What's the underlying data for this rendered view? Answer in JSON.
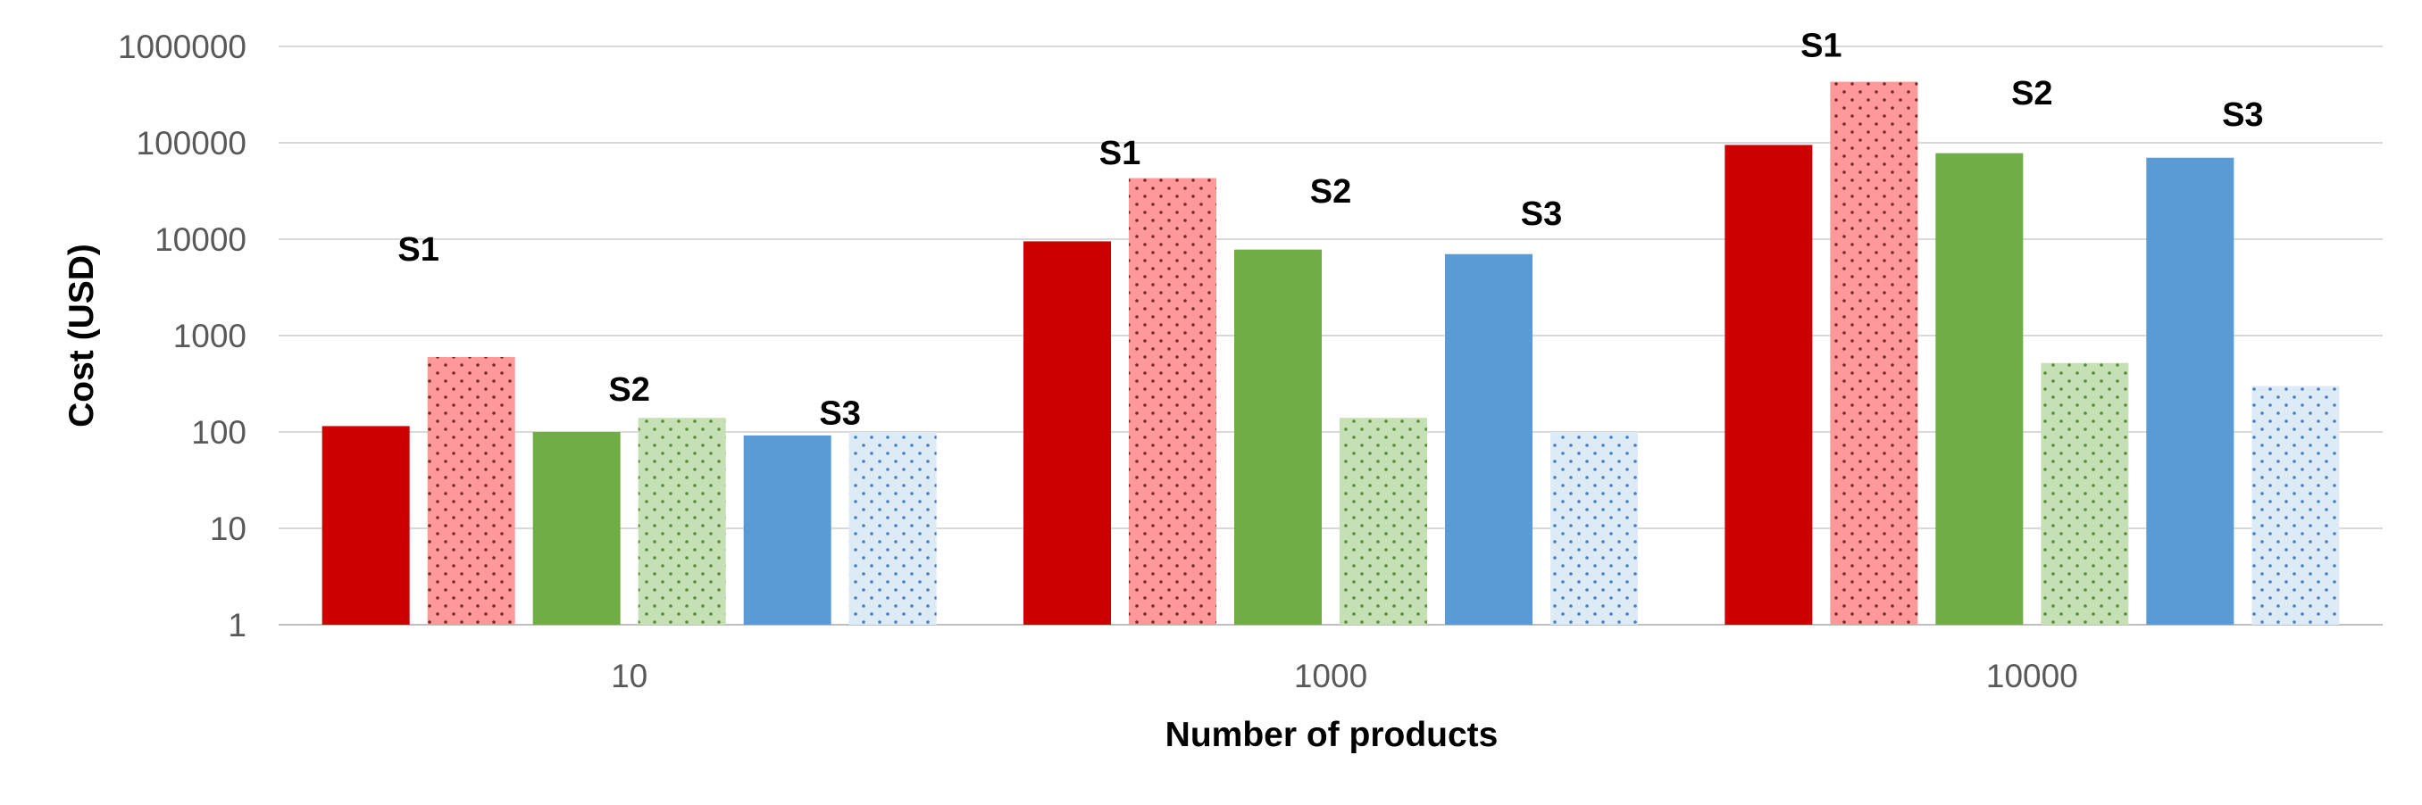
{
  "chart_data": {
    "type": "bar",
    "title": "",
    "xlabel": "Number of products",
    "ylabel": "Cost (USD)",
    "y_scale": "log",
    "ylim": [
      1,
      1000000
    ],
    "y_ticks": [
      "1",
      "10",
      "100",
      "1000",
      "10000",
      "100000",
      "1000000"
    ],
    "categories": [
      "10",
      "1000",
      "10000"
    ],
    "grid": "horizontal",
    "legend": "none",
    "series": [
      {
        "values": [
          115,
          9500,
          95000
        ],
        "color": "#cc0000",
        "pattern": "solid",
        "group_label": "S1"
      },
      {
        "values": [
          600,
          43000,
          430000
        ],
        "color": "#ff9999",
        "pattern": "dots",
        "dot_color": "#7a2a2a",
        "group_label": "S1"
      },
      {
        "values": [
          100,
          7800,
          78000
        ],
        "color": "#70ad47",
        "pattern": "solid",
        "group_label": "S2"
      },
      {
        "values": [
          140,
          140,
          520
        ],
        "color": "#c5e0b4",
        "pattern": "dots",
        "dot_color": "#5a8a3a",
        "group_label": "S2"
      },
      {
        "values": [
          92,
          7000,
          70000
        ],
        "color": "#5b9bd5",
        "pattern": "solid",
        "group_label": "S3"
      },
      {
        "values": [
          100,
          100,
          300
        ],
        "color": "#ddebf7",
        "pattern": "dots",
        "dot_color": "#4a7fbf",
        "group_label": "S3"
      }
    ],
    "group_labels": [
      {
        "category": "10",
        "texts": [
          "S1",
          "S2",
          "S3"
        ],
        "values": [
          6000,
          210,
          120
        ]
      },
      {
        "category": "1000",
        "texts": [
          "S1",
          "S2",
          "S3"
        ],
        "values": [
          60000,
          24000,
          14000
        ]
      },
      {
        "category": "10000",
        "texts": [
          "S1",
          "S2",
          "S3"
        ],
        "values": [
          780000,
          250000,
          150000
        ]
      }
    ]
  }
}
